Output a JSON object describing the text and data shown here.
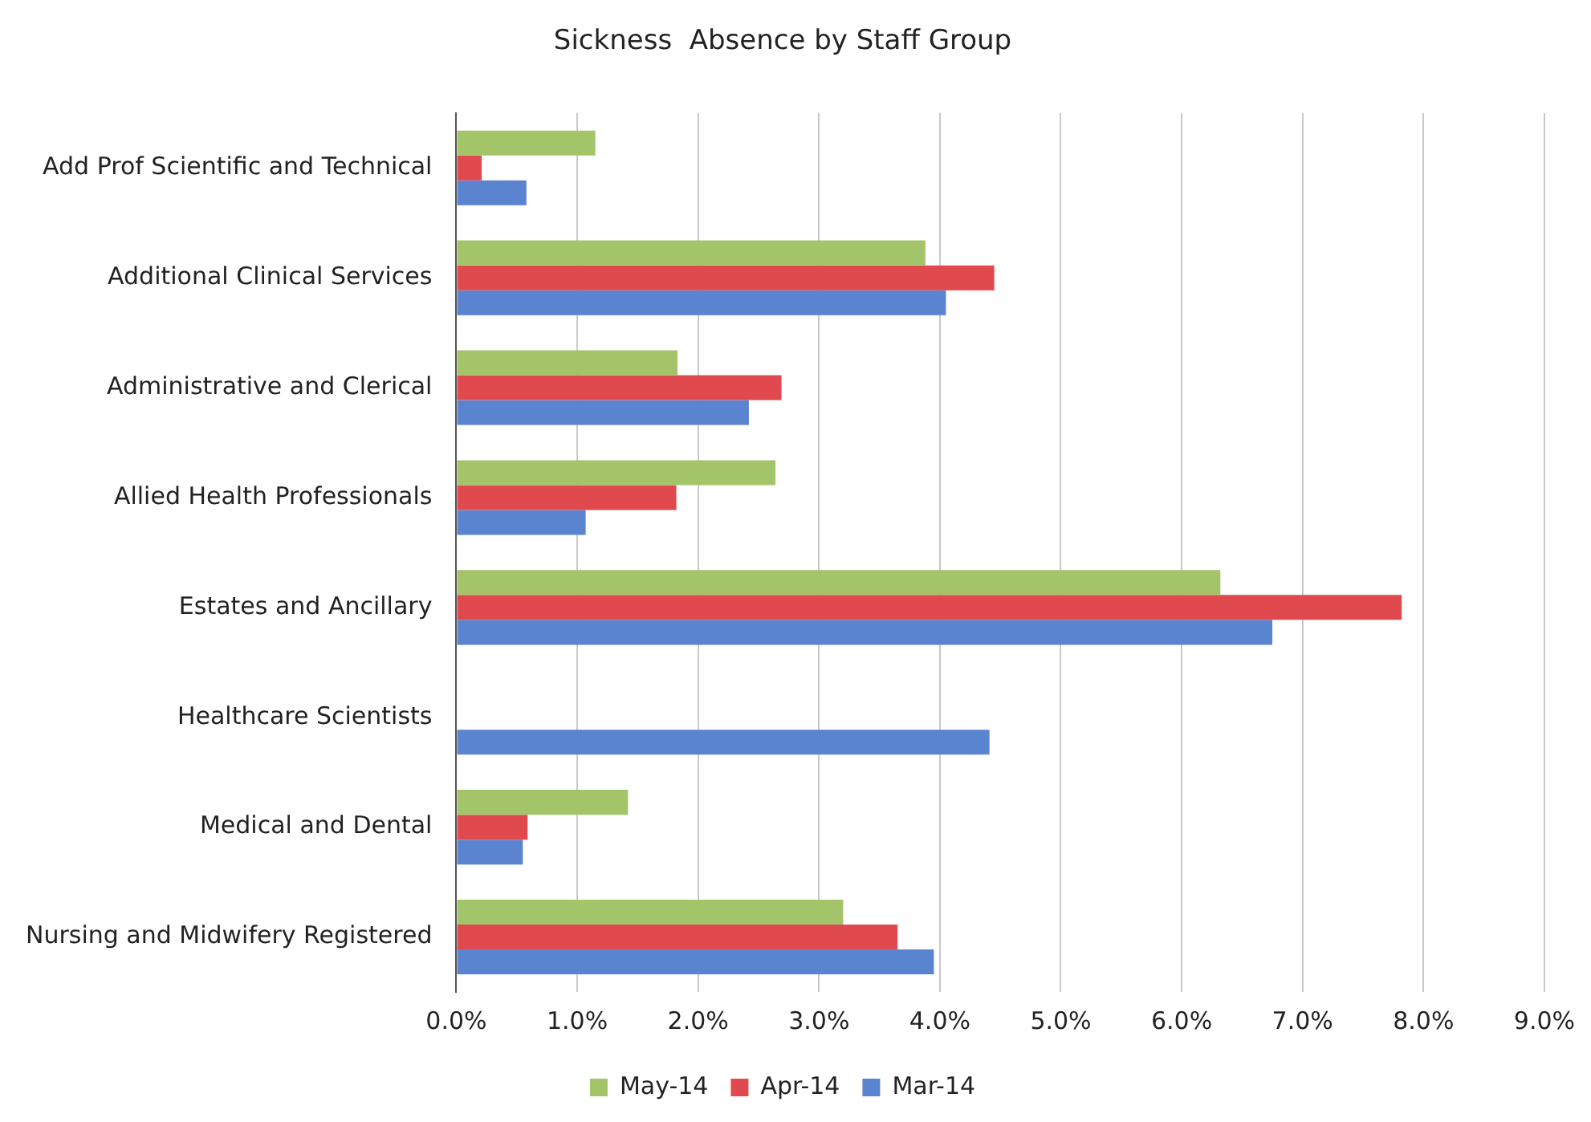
{
  "chart_data": {
    "type": "bar",
    "orientation": "horizontal",
    "title": "Sickness  Absence by Staff Group",
    "categories": [
      "Add Prof Scientific and Technical",
      "Additional Clinical Services",
      "Administrative and Clerical",
      "Allied Health Professionals",
      "Estates and Ancillary",
      "Healthcare Scientists",
      "Medical and Dental",
      "Nursing and Midwifery Registered"
    ],
    "series": [
      {
        "name": "May-14",
        "color": "#a4c46a",
        "values": [
          1.15,
          3.88,
          1.83,
          2.64,
          6.32,
          null,
          1.42,
          3.2
        ]
      },
      {
        "name": "Apr-14",
        "color": "#e04a4f",
        "values": [
          0.21,
          4.45,
          2.69,
          1.82,
          7.82,
          null,
          0.59,
          3.65
        ]
      },
      {
        "name": "Mar-14",
        "color": "#5b84d0",
        "values": [
          0.58,
          4.05,
          2.42,
          1.07,
          6.75,
          4.41,
          0.55,
          3.95
        ]
      }
    ],
    "xlim": [
      0,
      9
    ],
    "xticks": [
      {
        "value": 0,
        "label": "0.0%"
      },
      {
        "value": 1,
        "label": "1.0%"
      },
      {
        "value": 2,
        "label": "2.0%"
      },
      {
        "value": 3,
        "label": "3.0%"
      },
      {
        "value": 4,
        "label": "4.0%"
      },
      {
        "value": 5,
        "label": "5.0%"
      },
      {
        "value": 6,
        "label": "6.0%"
      },
      {
        "value": 7,
        "label": "7.0%"
      },
      {
        "value": 8,
        "label": "8.0%"
      },
      {
        "value": 9,
        "label": "9.0%"
      }
    ],
    "grid": "x",
    "legend": "bottom"
  }
}
